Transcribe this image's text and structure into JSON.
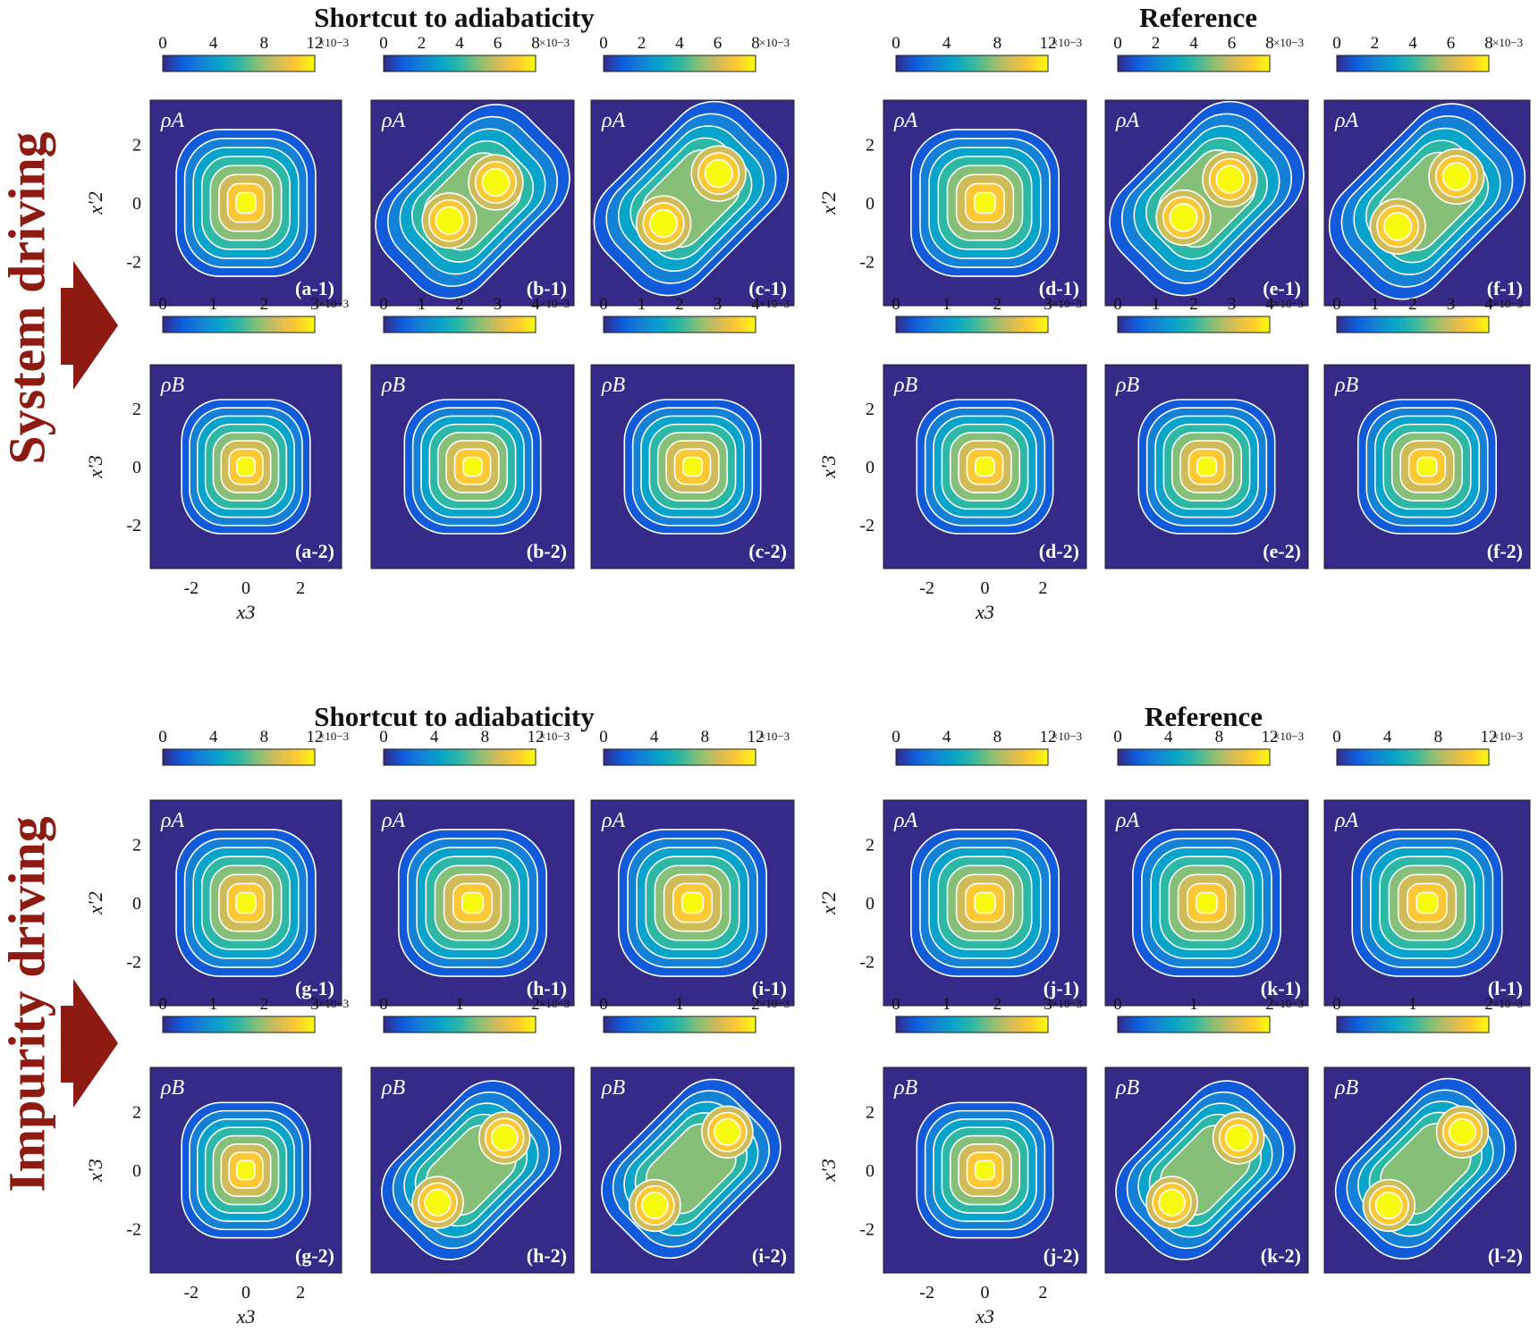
{
  "figure": {
    "row_labels": [
      "System driving",
      "Impurity driving"
    ],
    "section_titles": [
      "Shortcut to adiabaticity",
      "Reference",
      "Shortcut to adiabaticity",
      "Reference"
    ],
    "y_ticks": [
      "2",
      "0",
      "-2"
    ],
    "x_ticks": [
      "-2",
      "0",
      "2"
    ],
    "x_label": "x3",
    "y_label_A": "x'2",
    "y_label_B": "x'3",
    "rho_A": "ρA",
    "rho_B": "ρB",
    "exponent": "×10−3",
    "colors": {
      "background": "#352a87",
      "arrow": "#8e1b12",
      "low": "#0f5cdd",
      "mid": "#2fb9a5",
      "high": "#f9fb0e"
    }
  },
  "chart_data": [
    {
      "type": "contour",
      "panel": "a-1",
      "density": "ρA",
      "colorbar_ticks": [
        "0",
        "4",
        "8",
        "12"
      ],
      "colorbar_max": 12,
      "peaks": [
        [
          0,
          0
        ]
      ],
      "axis_range": [
        -3.5,
        3.5
      ]
    },
    {
      "type": "contour",
      "panel": "b-1",
      "density": "ρA",
      "colorbar_ticks": [
        "0",
        "2",
        "4",
        "6",
        "8"
      ],
      "colorbar_max": 8,
      "peaks": [
        [
          -0.8,
          -0.6
        ],
        [
          0.8,
          0.7
        ]
      ],
      "axis_range": [
        -3.5,
        3.5
      ]
    },
    {
      "type": "contour",
      "panel": "c-1",
      "density": "ρA",
      "colorbar_ticks": [
        "0",
        "2",
        "4",
        "6",
        "8"
      ],
      "colorbar_max": 8,
      "peaks": [
        [
          -1.0,
          -0.7
        ],
        [
          0.9,
          1.0
        ]
      ],
      "axis_range": [
        -3.5,
        3.5
      ]
    },
    {
      "type": "contour",
      "panel": "a-2",
      "density": "ρB",
      "colorbar_ticks": [
        "0",
        "1",
        "2",
        "3"
      ],
      "colorbar_max": 3,
      "peaks": [
        [
          0,
          0
        ]
      ],
      "axis_range": [
        -3.5,
        3.5
      ]
    },
    {
      "type": "contour",
      "panel": "b-2",
      "density": "ρB",
      "colorbar_ticks": [
        "0",
        "1",
        "2",
        "3",
        "4"
      ],
      "colorbar_max": 4,
      "peaks": [
        [
          0,
          0
        ]
      ],
      "axis_range": [
        -3.5,
        3.5
      ]
    },
    {
      "type": "contour",
      "panel": "c-2",
      "density": "ρB",
      "colorbar_ticks": [
        "0",
        "1",
        "2",
        "3",
        "4"
      ],
      "colorbar_max": 4,
      "peaks": [
        [
          0,
          0
        ]
      ],
      "axis_range": [
        -3.5,
        3.5
      ]
    },
    {
      "type": "contour",
      "panel": "d-1",
      "density": "ρA",
      "colorbar_ticks": [
        "0",
        "4",
        "8",
        "12"
      ],
      "colorbar_max": 12,
      "peaks": [
        [
          0,
          0
        ]
      ],
      "axis_range": [
        -3.5,
        3.5
      ]
    },
    {
      "type": "contour",
      "panel": "e-1",
      "density": "ρA",
      "colorbar_ticks": [
        "0",
        "2",
        "4",
        "6",
        "8"
      ],
      "colorbar_max": 8,
      "peaks": [
        [
          -0.8,
          -0.5
        ],
        [
          0.8,
          0.8
        ]
      ],
      "axis_range": [
        -3.5,
        3.5
      ]
    },
    {
      "type": "contour",
      "panel": "f-1",
      "density": "ρA",
      "colorbar_ticks": [
        "0",
        "2",
        "4",
        "6",
        "8"
      ],
      "colorbar_max": 8,
      "peaks": [
        [
          -1.0,
          -0.8
        ],
        [
          1.0,
          0.9
        ]
      ],
      "axis_range": [
        -3.5,
        3.5
      ]
    },
    {
      "type": "contour",
      "panel": "d-2",
      "density": "ρB",
      "colorbar_ticks": [
        "0",
        "1",
        "2",
        "3"
      ],
      "colorbar_max": 3,
      "peaks": [
        [
          0,
          0
        ]
      ],
      "axis_range": [
        -3.5,
        3.5
      ]
    },
    {
      "type": "contour",
      "panel": "e-2",
      "density": "ρB",
      "colorbar_ticks": [
        "0",
        "1",
        "2",
        "3",
        "4"
      ],
      "colorbar_max": 4,
      "peaks": [
        [
          0,
          0
        ]
      ],
      "axis_range": [
        -3.5,
        3.5
      ]
    },
    {
      "type": "contour",
      "panel": "f-2",
      "density": "ρB",
      "colorbar_ticks": [
        "0",
        "1",
        "2",
        "3",
        "4"
      ],
      "colorbar_max": 4,
      "peaks": [
        [
          0,
          0
        ]
      ],
      "axis_range": [
        -3.5,
        3.5
      ]
    },
    {
      "type": "contour",
      "panel": "g-1",
      "density": "ρA",
      "colorbar_ticks": [
        "0",
        "4",
        "8",
        "12"
      ],
      "colorbar_max": 12,
      "peaks": [
        [
          0,
          0
        ]
      ],
      "axis_range": [
        -3.5,
        3.5
      ]
    },
    {
      "type": "contour",
      "panel": "h-1",
      "density": "ρA",
      "colorbar_ticks": [
        "0",
        "4",
        "8",
        "12"
      ],
      "colorbar_max": 12,
      "peaks": [
        [
          0,
          0
        ]
      ],
      "axis_range": [
        -3.5,
        3.5
      ]
    },
    {
      "type": "contour",
      "panel": "i-1",
      "density": "ρA",
      "colorbar_ticks": [
        "0",
        "4",
        "8",
        "12"
      ],
      "colorbar_max": 12,
      "peaks": [
        [
          0,
          0
        ]
      ],
      "axis_range": [
        -3.5,
        3.5
      ]
    },
    {
      "type": "contour",
      "panel": "g-2",
      "density": "ρB",
      "colorbar_ticks": [
        "0",
        "1",
        "2",
        "3"
      ],
      "colorbar_max": 3,
      "peaks": [
        [
          0,
          0
        ]
      ],
      "axis_range": [
        -3.5,
        3.5
      ]
    },
    {
      "type": "contour",
      "panel": "h-2",
      "density": "ρB",
      "colorbar_ticks": [
        "0",
        "1",
        "2"
      ],
      "colorbar_max": 2,
      "peaks": [
        [
          -1.2,
          -1.1
        ],
        [
          1.1,
          1.1
        ]
      ],
      "axis_range": [
        -3.5,
        3.5
      ]
    },
    {
      "type": "contour",
      "panel": "i-2",
      "density": "ρB",
      "colorbar_ticks": [
        "0",
        "1",
        "2"
      ],
      "colorbar_max": 2,
      "peaks": [
        [
          -1.3,
          -1.2
        ],
        [
          1.2,
          1.3
        ]
      ],
      "axis_range": [
        -3.5,
        3.5
      ]
    },
    {
      "type": "contour",
      "panel": "j-1",
      "density": "ρA",
      "colorbar_ticks": [
        "0",
        "4",
        "8",
        "12"
      ],
      "colorbar_max": 12,
      "peaks": [
        [
          0,
          0
        ]
      ],
      "axis_range": [
        -3.5,
        3.5
      ]
    },
    {
      "type": "contour",
      "panel": "k-1",
      "density": "ρA",
      "colorbar_ticks": [
        "0",
        "4",
        "8",
        "12"
      ],
      "colorbar_max": 12,
      "peaks": [
        [
          0,
          0
        ]
      ],
      "axis_range": [
        -3.5,
        3.5
      ]
    },
    {
      "type": "contour",
      "panel": "l-1",
      "density": "ρA",
      "colorbar_ticks": [
        "0",
        "4",
        "8",
        "12"
      ],
      "colorbar_max": 12,
      "peaks": [
        [
          0,
          0
        ]
      ],
      "axis_range": [
        -3.5,
        3.5
      ]
    },
    {
      "type": "contour",
      "panel": "j-2",
      "density": "ρB",
      "colorbar_ticks": [
        "0",
        "1",
        "2",
        "3"
      ],
      "colorbar_max": 3,
      "peaks": [
        [
          0,
          0
        ]
      ],
      "axis_range": [
        -3.5,
        3.5
      ]
    },
    {
      "type": "contour",
      "panel": "k-2",
      "density": "ρB",
      "colorbar_ticks": [
        "0",
        "1",
        "2"
      ],
      "colorbar_max": 2,
      "peaks": [
        [
          -1.2,
          -1.1
        ],
        [
          1.1,
          1.1
        ]
      ],
      "axis_range": [
        -3.5,
        3.5
      ]
    },
    {
      "type": "contour",
      "panel": "l-2",
      "density": "ρB",
      "colorbar_ticks": [
        "0",
        "1",
        "2"
      ],
      "colorbar_max": 2,
      "peaks": [
        [
          -1.3,
          -1.2
        ],
        [
          1.2,
          1.3
        ]
      ],
      "axis_range": [
        -3.5,
        3.5
      ]
    }
  ]
}
